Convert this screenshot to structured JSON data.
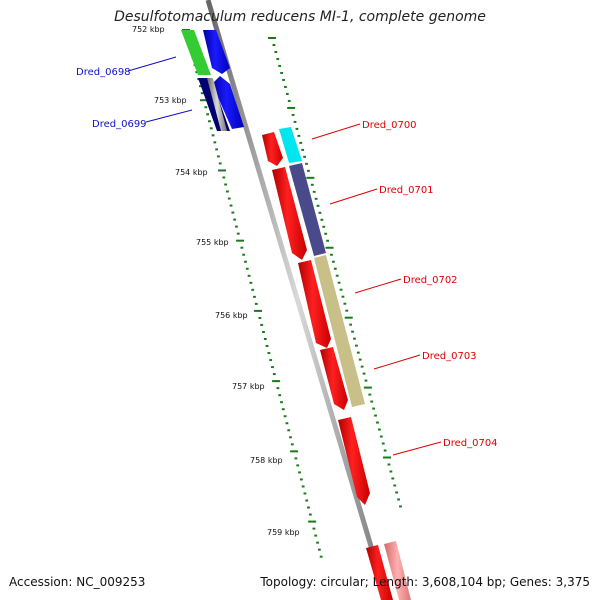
{
  "title": "Desulfotomaculum reducens MI-1, complete genome",
  "footer": {
    "accession": "Accession: NC_009253",
    "topology": "Topology: circular; Length: 3,608,104 bp; Genes: 3,375"
  },
  "kbp_labels": [
    "752 kbp",
    "753 kbp",
    "754 kbp",
    "755 kbp",
    "756 kbp",
    "757 kbp",
    "758 kbp",
    "759 kbp"
  ],
  "genes": [
    {
      "label": "Dred_0698",
      "color": "#1010cc"
    },
    {
      "label": "Dred_0699",
      "color": "#1010cc"
    },
    {
      "label": "Dred_0700",
      "color": "#e00000"
    },
    {
      "label": "Dred_0701",
      "color": "#e00000"
    },
    {
      "label": "Dred_0702",
      "color": "#e00000"
    },
    {
      "label": "Dred_0703",
      "color": "#e00000"
    },
    {
      "label": "Dred_0704",
      "color": "#e00000"
    }
  ],
  "colors": {
    "backbone": "#999999",
    "forward_gene": "#ff0000",
    "reverse_gene": "#0000ff",
    "tick": "#1a7a1a",
    "cyan": "#00e5ee",
    "navy": "#4a4a8a",
    "khaki": "#c8c088",
    "green": "#33cc33",
    "dark_navy": "#000070"
  }
}
